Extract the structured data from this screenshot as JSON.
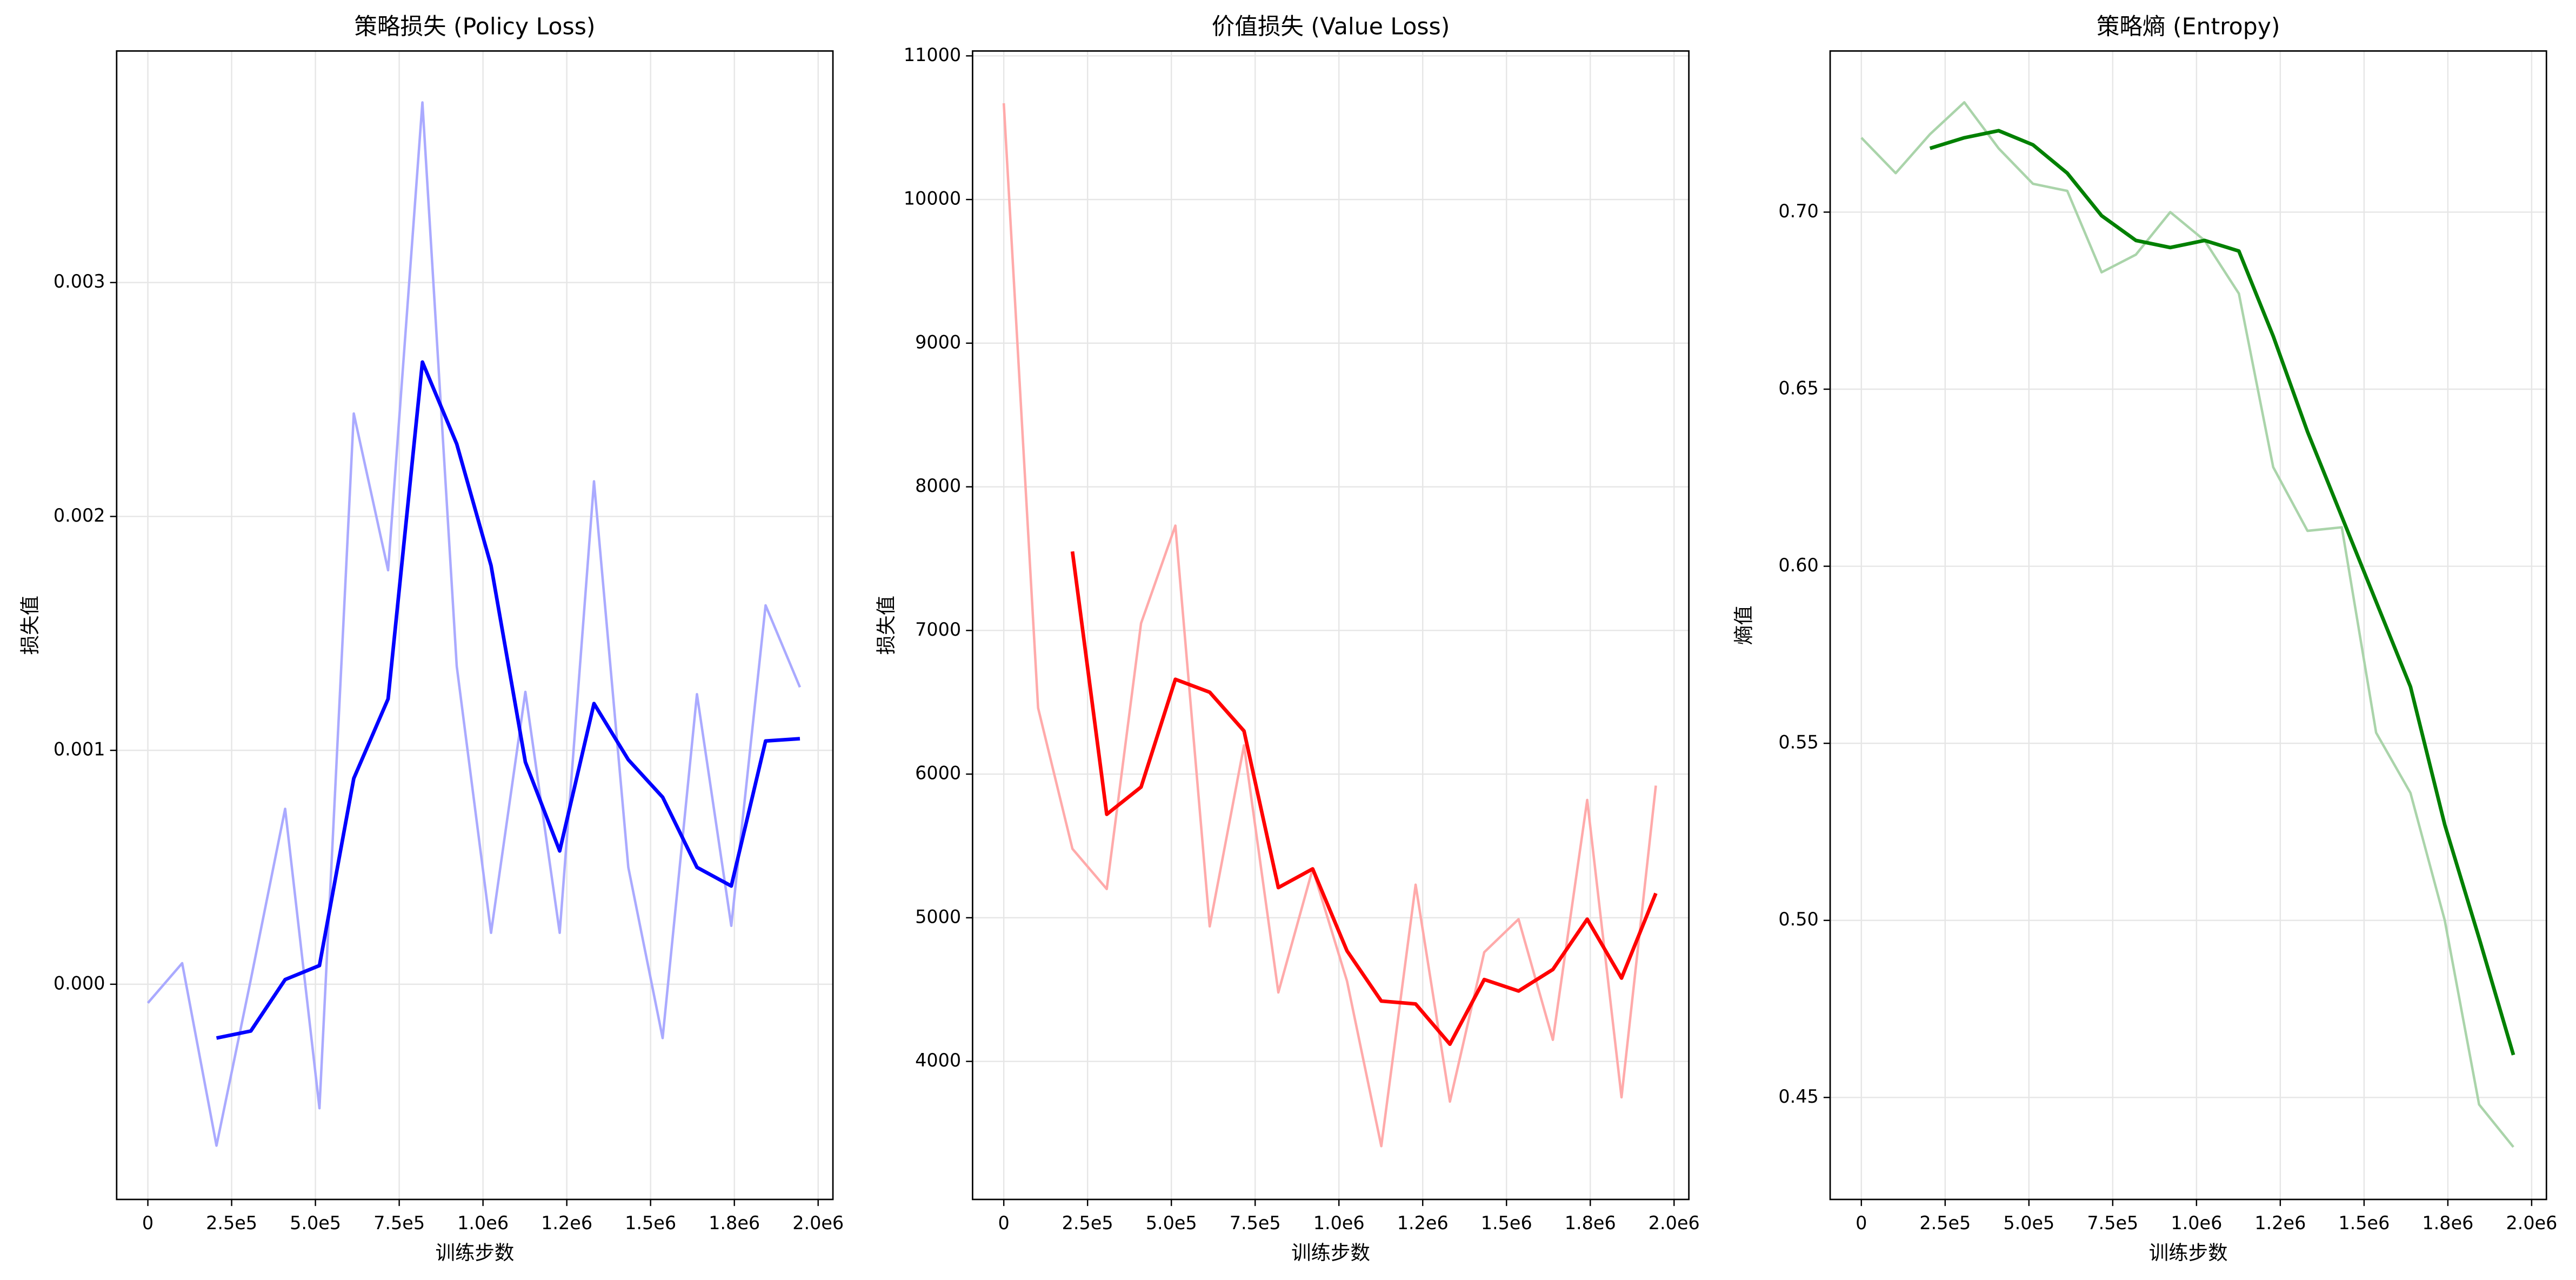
{
  "chart_data": [
    {
      "type": "line",
      "title": "策略损失 (Policy Loss)",
      "xlabel": "训练步数",
      "ylabel": "损失值",
      "x": [
        0,
        102400,
        204800,
        307200,
        409600,
        512000,
        614400,
        716800,
        819200,
        921600,
        1024000,
        1126400,
        1228800,
        1331200,
        1433600,
        1536000,
        1638400,
        1740800,
        1843200,
        1945600
      ],
      "series": [
        {
          "color": "#aaaaff",
          "width": 1.5,
          "values": [
            -8e-05,
            9e-05,
            -0.00069,
            2e-05,
            0.00075,
            -0.00053,
            0.00244,
            0.00177,
            0.00377,
            0.00136,
            0.00022,
            0.00125,
            0.00022,
            0.00215,
            0.0005,
            -0.00023,
            0.00124,
            0.00025,
            0.00162,
            0.00127
          ]
        },
        {
          "color": "#0000ff",
          "width": 2.2,
          "values": [
            null,
            null,
            -0.00023,
            -0.0002,
            2e-05,
            8e-05,
            0.00088,
            0.00122,
            0.00266,
            0.00231,
            0.00179,
            0.00095,
            0.00057,
            0.0012,
            0.00096,
            0.0008,
            0.0005,
            0.00042,
            0.00104,
            0.00105
          ]
        }
      ],
      "xlim": [
        -93137,
        2044118
      ],
      "ylim": [
        -0.00092,
        0.00399
      ],
      "xticks": [
        0,
        {
          "value": 250000,
          "label": "2.5e5"
        },
        {
          "value": 500000,
          "label": "5.0e5"
        },
        {
          "value": 750000,
          "label": "7.5e5"
        },
        {
          "value": 1000000,
          "label": "1.0e6"
        },
        {
          "value": 1250000,
          "label": "1.2e6"
        },
        {
          "value": 1500000,
          "label": "1.5e6"
        },
        {
          "value": 1750000,
          "label": "1.8e6"
        },
        {
          "value": 2000000,
          "label": "2.0e6"
        }
      ],
      "yticks": [
        {
          "value": 0,
          "label": "0.000"
        },
        {
          "value": 0.001,
          "label": "0.001"
        },
        {
          "value": 0.002,
          "label": "0.002"
        },
        {
          "value": 0.003,
          "label": "0.003"
        }
      ],
      "grid": true
    },
    {
      "type": "line",
      "title": "价值损失 (Value Loss)",
      "xlabel": "训练步数",
      "ylabel": "损失值",
      "x": [
        0,
        102400,
        204800,
        307200,
        409600,
        512000,
        614400,
        716800,
        819200,
        921600,
        1024000,
        1126400,
        1228800,
        1331200,
        1433600,
        1536000,
        1638400,
        1740800,
        1843200,
        1945600
      ],
      "series": [
        {
          "color": "#ffaaaa",
          "width": 1.5,
          "values": [
            10670,
            6460,
            5480,
            5200,
            7050,
            7730,
            4940,
            6200,
            4480,
            5340,
            4560,
            3410,
            5230,
            3720,
            4760,
            4990,
            4150,
            5820,
            3750,
            5920
          ]
        },
        {
          "color": "#ff0000",
          "width": 2.2,
          "values": [
            null,
            null,
            7550,
            5720,
            5910,
            6660,
            6570,
            6300,
            5210,
            5340,
            4770,
            4420,
            4400,
            4120,
            4570,
            4490,
            4640,
            4990,
            4580,
            5170
          ]
        }
      ],
      "xlim": [
        -93137,
        2044118
      ],
      "ylim": [
        3039,
        11034
      ],
      "xticks": [
        0,
        {
          "value": 250000,
          "label": "2.5e5"
        },
        {
          "value": 500000,
          "label": "5.0e5"
        },
        {
          "value": 750000,
          "label": "7.5e5"
        },
        {
          "value": 1000000,
          "label": "1.0e6"
        },
        {
          "value": 1250000,
          "label": "1.2e6"
        },
        {
          "value": 1500000,
          "label": "1.5e6"
        },
        {
          "value": 1750000,
          "label": "1.8e6"
        },
        {
          "value": 2000000,
          "label": "2.0e6"
        }
      ],
      "yticks": [
        4000,
        5000,
        6000,
        7000,
        8000,
        9000,
        10000,
        11000
      ],
      "grid": true
    },
    {
      "type": "line",
      "title": "策略熵 (Entropy)",
      "xlabel": "训练步数",
      "ylabel": "熵值",
      "x": [
        0,
        102400,
        204800,
        307200,
        409600,
        512000,
        614400,
        716800,
        819200,
        921600,
        1024000,
        1126400,
        1228800,
        1331200,
        1433600,
        1536000,
        1638400,
        1740800,
        1843200,
        1945600
      ],
      "series": [
        {
          "color": "#aad4aa",
          "width": 1.5,
          "values": [
            0.721,
            0.711,
            0.722,
            0.731,
            0.718,
            0.708,
            0.706,
            0.683,
            0.688,
            0.7,
            0.692,
            0.677,
            0.628,
            0.61,
            0.611,
            0.553,
            0.536,
            0.5,
            0.448,
            0.436
          ]
        },
        {
          "color": "#008000",
          "width": 2.2,
          "values": [
            null,
            null,
            0.718,
            0.721,
            0.723,
            0.719,
            0.711,
            0.699,
            0.692,
            0.69,
            0.692,
            0.689,
            0.665,
            0.638,
            0.614,
            0.59,
            0.566,
            0.527,
            0.495,
            0.462
          ]
        }
      ],
      "xlim": [
        -93137,
        2044118
      ],
      "ylim": [
        0.4212,
        0.7455
      ],
      "xticks": [
        0,
        {
          "value": 250000,
          "label": "2.5e5"
        },
        {
          "value": 500000,
          "label": "5.0e5"
        },
        {
          "value": 750000,
          "label": "7.5e5"
        },
        {
          "value": 1000000,
          "label": "1.0e6"
        },
        {
          "value": 1250000,
          "label": "1.2e6"
        },
        {
          "value": 1500000,
          "label": "1.5e6"
        },
        {
          "value": 1750000,
          "label": "1.8e6"
        },
        {
          "value": 2000000,
          "label": "2.0e6"
        }
      ],
      "yticks": [
        0.45,
        {
          "value": 0.5,
          "label": "0.50"
        },
        0.55,
        {
          "value": 0.6,
          "label": "0.60"
        },
        0.65,
        {
          "value": 0.7,
          "label": "0.70"
        }
      ],
      "grid": true
    }
  ]
}
